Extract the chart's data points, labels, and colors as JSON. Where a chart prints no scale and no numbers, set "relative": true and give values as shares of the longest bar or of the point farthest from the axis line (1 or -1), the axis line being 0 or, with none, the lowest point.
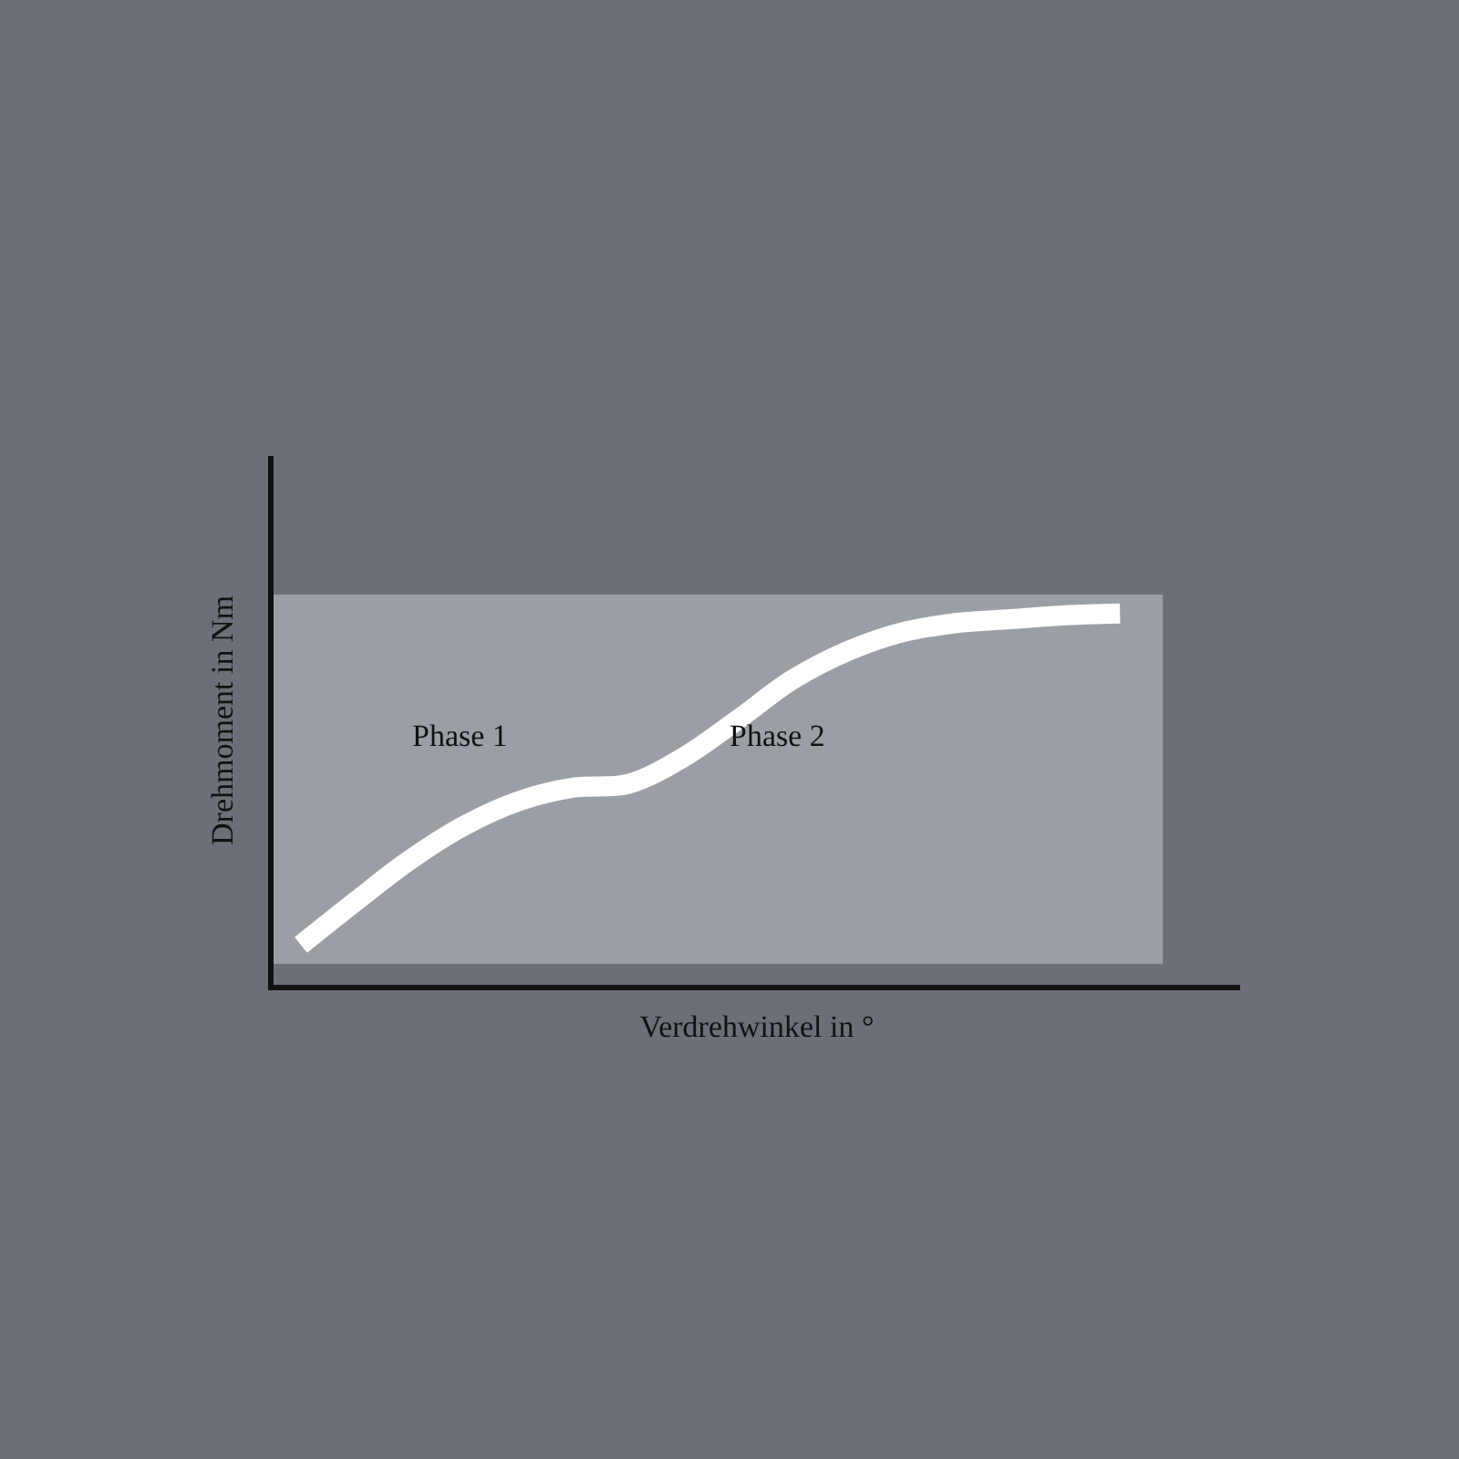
{
  "chart_data": {
    "type": "line",
    "relative": true,
    "xlabel": "Verdrehwinkel in °",
    "ylabel": "Drehmoment in Nm",
    "categories": [
      null,
      null,
      null,
      null,
      null,
      null,
      null,
      null,
      null,
      null,
      null,
      null,
      null,
      null,
      null,
      null
    ],
    "series": [
      {
        "color": "#ffffff",
        "values": [
          0.054,
          0.178,
          0.297,
          0.395,
          0.465,
          0.503,
          0.514,
          0.589,
          0.697,
          0.811,
          0.892,
          0.946,
          0.973,
          0.984,
          0.995,
          1.0
        ]
      }
    ],
    "bands": [
      {
        "axis": "y",
        "from": 0,
        "to": 1.054,
        "color": "#9a9fa5"
      }
    ],
    "annotations": [
      "Phase 1",
      "Phase 2"
    ],
    "marker": "none",
    "line_style": "solid",
    "grid": false,
    "tick_labels": false
  }
}
